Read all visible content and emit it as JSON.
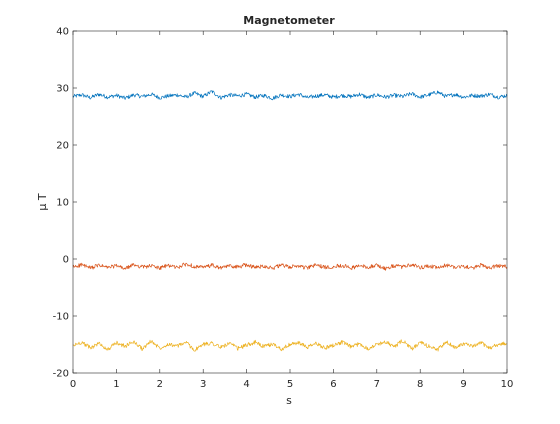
{
  "chart_data": {
    "type": "line",
    "title": "Magnetometer",
    "xlabel": "s",
    "ylabel": "μ T",
    "xlim": [
      0,
      10
    ],
    "ylim": [
      -20,
      40
    ],
    "xticks": [
      0,
      1,
      2,
      3,
      4,
      5,
      6,
      7,
      8,
      9,
      10
    ],
    "yticks": [
      -20,
      -10,
      0,
      10,
      20,
      30,
      40
    ],
    "grid": false,
    "legend": "none",
    "box": true,
    "series": [
      {
        "color": "#0072BD",
        "x": [
          0,
          0.2,
          0.4,
          0.6,
          0.8,
          1.0,
          1.2,
          1.4,
          1.6,
          1.8,
          2.0,
          2.2,
          2.4,
          2.6,
          2.8,
          3.0,
          3.2,
          3.4,
          3.6,
          3.8,
          4.0,
          4.2,
          4.4,
          4.6,
          4.8,
          5.0,
          5.2,
          5.4,
          5.6,
          5.8,
          6.0,
          6.2,
          6.4,
          6.6,
          6.8,
          7.0,
          7.2,
          7.4,
          7.6,
          7.8,
          8.0,
          8.2,
          8.4,
          8.6,
          8.8,
          9.0,
          9.2,
          9.4,
          9.6,
          9.8,
          10.0
        ],
        "y": [
          28.5,
          28.8,
          28.3,
          28.9,
          28.4,
          28.7,
          28.2,
          28.8,
          28.5,
          28.9,
          28.3,
          28.6,
          28.8,
          28.4,
          29.1,
          28.5,
          29.4,
          28.3,
          28.8,
          28.6,
          28.9,
          28.4,
          28.7,
          28.2,
          28.8,
          28.5,
          28.9,
          28.3,
          28.6,
          28.8,
          28.4,
          28.7,
          28.5,
          28.9,
          28.3,
          28.8,
          28.4,
          28.7,
          28.5,
          29.0,
          28.4,
          28.8,
          29.3,
          28.5,
          28.9,
          28.4,
          28.7,
          28.6,
          28.9,
          28.4,
          28.7
        ]
      },
      {
        "color": "#D95319",
        "x": [
          0,
          0.2,
          0.4,
          0.6,
          0.8,
          1.0,
          1.2,
          1.4,
          1.6,
          1.8,
          2.0,
          2.2,
          2.4,
          2.6,
          2.8,
          3.0,
          3.2,
          3.4,
          3.6,
          3.8,
          4.0,
          4.2,
          4.4,
          4.6,
          4.8,
          5.0,
          5.2,
          5.4,
          5.6,
          5.8,
          6.0,
          6.2,
          6.4,
          6.6,
          6.8,
          7.0,
          7.2,
          7.4,
          7.6,
          7.8,
          8.0,
          8.2,
          8.4,
          8.6,
          8.8,
          9.0,
          9.2,
          9.4,
          9.6,
          9.8,
          10.0
        ],
        "y": [
          -1.4,
          -1.0,
          -1.6,
          -1.1,
          -1.5,
          -1.2,
          -1.7,
          -1.0,
          -1.4,
          -1.2,
          -1.6,
          -1.1,
          -1.5,
          -0.9,
          -1.3,
          -1.5,
          -1.1,
          -1.6,
          -1.2,
          -1.4,
          -1.0,
          -1.5,
          -1.2,
          -1.6,
          -1.1,
          -1.4,
          -1.2,
          -1.6,
          -1.0,
          -1.5,
          -1.3,
          -1.1,
          -1.6,
          -1.2,
          -1.4,
          -1.1,
          -1.7,
          -1.2,
          -1.4,
          -1.0,
          -1.5,
          -1.2,
          -1.6,
          -1.1,
          -1.4,
          -1.3,
          -1.6,
          -1.1,
          -1.5,
          -1.2,
          -1.4
        ]
      },
      {
        "color": "#EDB120",
        "x": [
          0,
          0.2,
          0.4,
          0.6,
          0.8,
          1.0,
          1.2,
          1.4,
          1.6,
          1.8,
          2.0,
          2.2,
          2.4,
          2.6,
          2.8,
          3.0,
          3.2,
          3.4,
          3.6,
          3.8,
          4.0,
          4.2,
          4.4,
          4.6,
          4.8,
          5.0,
          5.2,
          5.4,
          5.6,
          5.8,
          6.0,
          6.2,
          6.4,
          6.6,
          6.8,
          7.0,
          7.2,
          7.4,
          7.6,
          7.8,
          8.0,
          8.2,
          8.4,
          8.6,
          8.8,
          9.0,
          9.2,
          9.4,
          9.6,
          9.8,
          10.0
        ],
        "y": [
          -15.2,
          -14.6,
          -15.6,
          -14.8,
          -15.9,
          -14.7,
          -15.3,
          -14.5,
          -15.8,
          -14.4,
          -15.6,
          -14.9,
          -15.3,
          -14.6,
          -16.0,
          -15.0,
          -14.7,
          -15.5,
          -14.8,
          -15.7,
          -15.1,
          -14.6,
          -15.4,
          -14.9,
          -15.8,
          -15.0,
          -14.7,
          -15.5,
          -14.8,
          -15.6,
          -15.1,
          -14.6,
          -15.4,
          -14.9,
          -15.7,
          -15.0,
          -14.5,
          -15.4,
          -14.3,
          -15.8,
          -14.7,
          -15.3,
          -15.9,
          -14.6,
          -15.5,
          -14.8,
          -15.4,
          -14.7,
          -15.6,
          -15.0,
          -14.8
        ]
      }
    ]
  }
}
